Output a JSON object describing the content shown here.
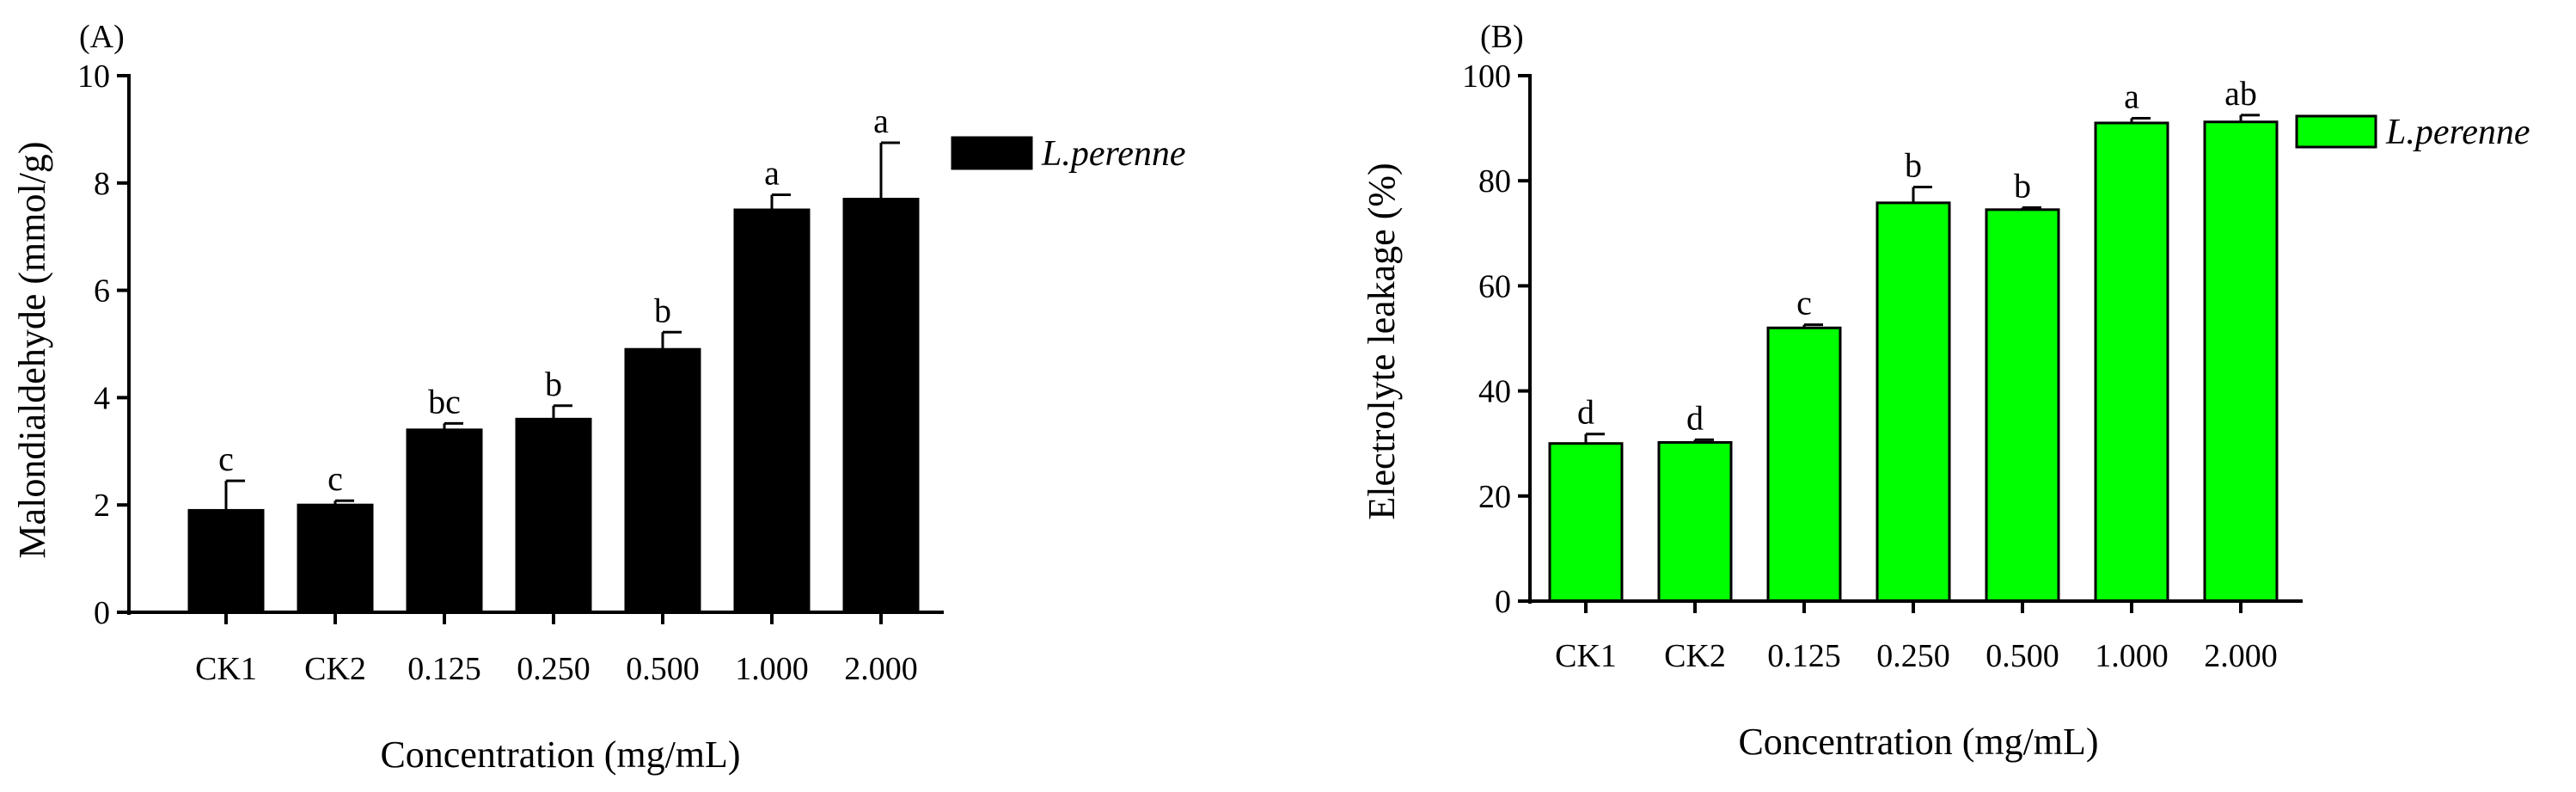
{
  "chart_data": [
    {
      "type": "bar",
      "panel_label": "(A)",
      "categories": [
        "CK1",
        "CK2",
        "0.125",
        "0.250",
        "0.500",
        "1.000",
        "2.000"
      ],
      "series": [
        {
          "name": "L.perenne",
          "values": [
            1.9,
            2.0,
            3.4,
            3.6,
            4.9,
            7.5,
            7.7
          ],
          "errors": [
            0.55,
            0.08,
            0.12,
            0.25,
            0.32,
            0.28,
            1.05
          ],
          "significance": [
            "c",
            "c",
            "bc",
            "b",
            "b",
            "a",
            "a"
          ]
        }
      ],
      "xlabel": "Concentration (mg/mL)",
      "ylabel": "Malondialdehyde (mmol/g)",
      "ylim": [
        0,
        10
      ],
      "yticks": [
        "0",
        "2",
        "4",
        "6",
        "8",
        "10"
      ],
      "grid": false,
      "legend_position": "top-right",
      "bar_color": "#000000"
    },
    {
      "type": "bar",
      "panel_label": "(B)",
      "categories": [
        "CK1",
        "CK2",
        "0.125",
        "0.250",
        "0.500",
        "1.000",
        "2.000"
      ],
      "series": [
        {
          "name": "L.perenne",
          "values": [
            30,
            30.2,
            52,
            75.8,
            74.5,
            91,
            91.2
          ],
          "errors": [
            1.8,
            0.5,
            0.6,
            3.0,
            0.4,
            0.9,
            1.3
          ],
          "significance": [
            "d",
            "d",
            "c",
            "b",
            "b",
            "a",
            "ab"
          ]
        }
      ],
      "xlabel": "Concentration (mg/mL)",
      "ylabel": "Electrolyte leakage (%)",
      "ylim": [
        0,
        100
      ],
      "yticks": [
        "0",
        "20",
        "40",
        "60",
        "80",
        "100"
      ],
      "grid": false,
      "legend_position": "top-right",
      "bar_color": "#00ff00"
    }
  ]
}
